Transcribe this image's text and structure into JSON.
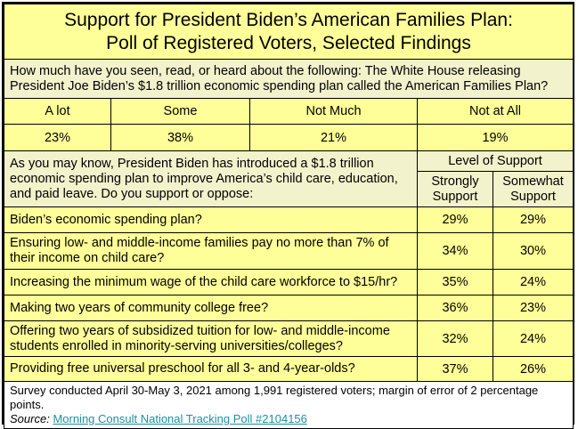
{
  "title": {
    "line1": "Support for President Biden’s American Families Plan:",
    "line2": "Poll of Registered Voters, Selected Findings"
  },
  "q1": {
    "text": "How much have you seen, read, or heard about the following: The White House releasing President Joe Biden’s $1.8 trillion economic spending plan called the American Families Plan?",
    "options": [
      "A lot",
      "Some",
      "Not Much",
      "Not at All"
    ],
    "values": [
      "23%",
      "38%",
      "21%",
      "19%"
    ]
  },
  "q2": {
    "text": "As you may know, President Biden has introduced a $1.8 trillion economic spending plan to improve America’s child care, education, and paid leave.  Do you support or oppose:",
    "level_header": "Level of Support",
    "col_strong": "Strongly Support",
    "col_somewhat": "Somewhat Support",
    "rows": [
      {
        "label": "Biden’s economic spending plan?",
        "strong": "29%",
        "somewhat": "29%"
      },
      {
        "label": "Ensuring low- and middle-income families pay no more than 7% of their income on child care?",
        "strong": "34%",
        "somewhat": "30%"
      },
      {
        "label": "Increasing the minimum wage of the child care workforce to $15/hr?",
        "strong": "35%",
        "somewhat": "24%"
      },
      {
        "label": "Making two years of community college free?",
        "strong": "36%",
        "somewhat": "23%"
      },
      {
        "label": "Offering two years of subsidized tuition for low- and middle-income students enrolled in minority-serving universities/colleges?",
        "strong": "32%",
        "somewhat": "24%"
      },
      {
        "label": "Providing free universal preschool for all 3- and 4-year-olds?",
        "strong": "37%",
        "somewhat": "26%"
      }
    ]
  },
  "footer": {
    "note": "Survey conducted April 30-May 3, 2021 among 1,991 registered voters; margin of error of 2 percentage points.",
    "source_label": "Source:",
    "source_link": "Morning Consult National Tracking Poll #2104156"
  }
}
